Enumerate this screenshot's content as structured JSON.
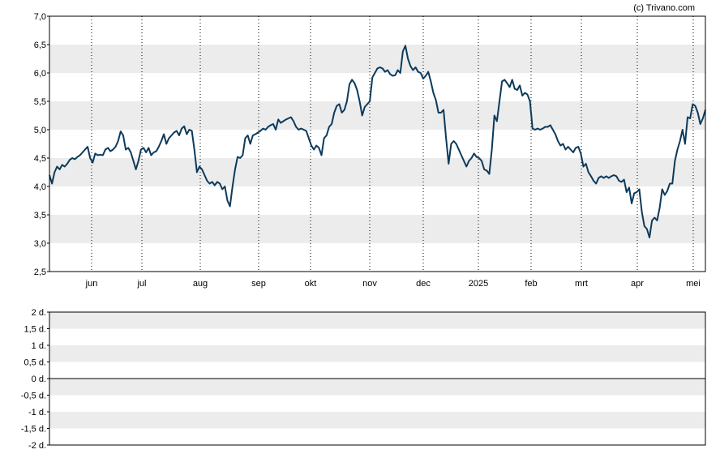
{
  "chart_data": [
    {
      "type": "line",
      "credit": "(c) Trivano.com",
      "ylim": [
        2.5,
        7.0
      ],
      "y_ticks": [
        "2,5",
        "3,0",
        "3,5",
        "4,0",
        "4,5",
        "5,0",
        "5,5",
        "6,0",
        "6,5",
        "7,0"
      ],
      "x_ticks": [
        "jun",
        "jul",
        "aug",
        "sep",
        "okt",
        "nov",
        "dec",
        "2025",
        "feb",
        "mrt",
        "apr",
        "mei"
      ],
      "grid": "banded horizontal, dotted vertical",
      "line_color": "#0c3a5b",
      "series": [
        {
          "values": [
            4.2,
            4.05,
            4.25,
            4.35,
            4.3,
            4.38,
            4.35,
            4.4,
            4.47,
            4.5,
            4.48,
            4.52,
            4.55,
            4.6,
            4.65,
            4.7,
            4.5,
            4.42,
            4.58,
            4.55,
            4.56,
            4.55,
            4.65,
            4.68,
            4.62,
            4.65,
            4.7,
            4.8,
            4.97,
            4.9,
            4.65,
            4.68,
            4.6,
            4.45,
            4.3,
            4.45,
            4.65,
            4.68,
            4.6,
            4.68,
            4.55,
            4.6,
            4.62,
            4.7,
            4.8,
            4.92,
            4.75,
            4.85,
            4.9,
            4.95,
            4.98,
            4.9,
            5.02,
            5.06,
            4.92,
            5.0,
            4.98,
            4.65,
            4.25,
            4.35,
            4.3,
            4.2,
            4.1,
            4.05,
            4.08,
            4.02,
            4.08,
            4.05,
            3.95,
            4.0,
            3.75,
            3.65,
            4.0,
            4.3,
            4.52,
            4.5,
            4.55,
            4.85,
            4.9,
            4.75,
            4.9,
            4.92,
            4.95,
            4.98,
            5.02,
            5.0,
            5.05,
            5.08,
            5.1,
            5.0,
            5.18,
            5.12,
            5.15,
            5.18,
            5.2,
            5.22,
            5.15,
            5.05,
            5.0,
            5.02,
            5.0,
            4.98,
            4.85,
            4.72,
            4.65,
            4.72,
            4.68,
            4.55,
            4.85,
            4.9,
            5.05,
            5.1,
            5.3,
            5.42,
            5.45,
            5.3,
            5.35,
            5.5,
            5.8,
            5.88,
            5.82,
            5.7,
            5.5,
            5.25,
            5.4,
            5.45,
            5.5,
            5.92,
            6.0,
            6.08,
            6.1,
            6.08,
            6.02,
            6.05,
            5.98,
            5.95,
            5.96,
            6.05,
            6.0,
            6.38,
            6.48,
            6.25,
            6.12,
            6.05,
            6.1,
            6.02,
            6.0,
            5.9,
            5.95,
            6.02,
            5.85,
            5.65,
            5.52,
            5.3,
            5.3,
            5.35,
            4.85,
            4.4,
            4.75,
            4.8,
            4.75,
            4.65,
            4.55,
            4.45,
            4.35,
            4.45,
            4.5,
            4.58,
            4.52,
            4.5,
            4.45,
            4.3,
            4.28,
            4.22,
            4.65,
            5.25,
            5.15,
            5.5,
            5.85,
            5.88,
            5.82,
            5.75,
            5.88,
            5.72,
            5.7,
            5.78,
            5.6,
            5.65,
            5.62,
            5.5,
            5.02,
            5.0,
            5.02,
            5.0,
            5.02,
            5.05,
            5.05,
            5.08,
            5.0,
            4.92,
            4.8,
            4.72,
            4.75,
            4.65,
            4.7,
            4.65,
            4.6,
            4.68,
            4.7,
            4.58,
            4.35,
            4.4,
            4.25,
            4.18,
            4.1,
            4.05,
            4.15,
            4.18,
            4.15,
            4.18,
            4.15,
            4.18,
            4.2,
            4.18,
            4.1,
            4.08,
            4.12,
            3.9,
            3.98,
            3.7,
            3.88,
            3.9,
            3.95,
            3.55,
            3.3,
            3.25,
            3.1,
            3.4,
            3.45,
            3.4,
            3.62,
            3.95,
            3.85,
            3.92,
            4.05,
            4.05,
            4.45,
            4.65,
            4.8,
            5.0,
            4.75,
            5.22,
            5.2,
            5.45,
            5.42,
            5.3,
            5.1,
            5.2,
            5.35
          ]
        }
      ]
    },
    {
      "type": "bar",
      "ylim": [
        -2,
        2
      ],
      "y_ticks": [
        "2 d.",
        "1,5 d.",
        "1 d.",
        "0,5 d.",
        "0 d.",
        "-0,5 d.",
        "-1 d.",
        "-1,5 d.",
        "-2 d."
      ],
      "values": []
    }
  ]
}
